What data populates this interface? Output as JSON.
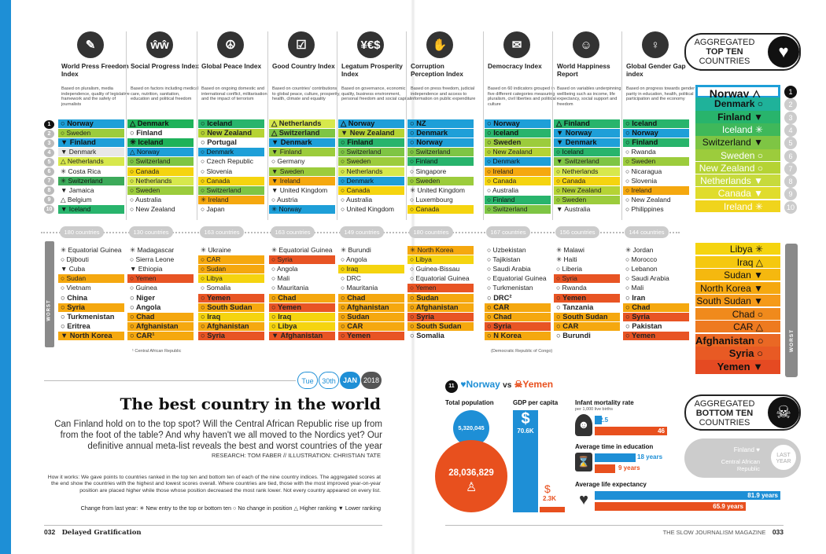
{
  "indices": [
    {
      "title": "World Press Freedom Index",
      "desc": "Based on pluralism, media independence, quality of legislative framework and the safety of journalists",
      "icon": "✎",
      "icon_name": "pen-nib-icon",
      "count": "180 countries"
    },
    {
      "title": "Social Progress Index",
      "desc": "Based on factors including medical care, nutrition, sanitation, education and political freedom",
      "icon": "ŵŵ",
      "icon_name": "people-icon",
      "count": "130 countries"
    },
    {
      "title": "Global Peace Index",
      "desc": "Based on ongoing domestic and international conflict, militarisation and the impact of terrorism",
      "icon": "☮",
      "icon_name": "peace-icon",
      "count": "163 countries"
    },
    {
      "title": "Good Country Index",
      "desc": "Based on countries' contributions to global peace, culture, prosperity, health, climate and equality",
      "icon": "☑",
      "icon_name": "checkbox-icon",
      "count": "163 countries"
    },
    {
      "title": "Legatum Prosperity Index",
      "desc": "Based on governance, economic quality, business environment, personal freedom and social capital",
      "icon": "¥€$",
      "icon_name": "currency-icon",
      "count": "149 countries"
    },
    {
      "title": "Corruption Perception Index",
      "desc": "Based on press freedom, judicial independence and access to information on public expenditure",
      "icon": "✋",
      "icon_name": "bribe-hand-icon",
      "count": "180 countries"
    },
    {
      "title": "Democracy Index",
      "desc": "Based on 60 indicators grouped in five different categories measuring pluralism, civil liberties and political culture",
      "icon": "✉",
      "icon_name": "ballot-icon",
      "count": "167 countries"
    },
    {
      "title": "World Happiness Report",
      "desc": "Based on variables underpinning wellbeing such as income, life expectancy, social support and freedom",
      "icon": "☺",
      "icon_name": "smiley-icon",
      "count": "156 countries"
    },
    {
      "title": "Global Gender Gap index",
      "desc": "Based on progress towards gender parity in education, health, political participation and the economy",
      "icon": "♀",
      "icon_name": "female-icon",
      "count": "144 countries"
    }
  ],
  "best_ranks": [
    "1",
    "2",
    "3",
    "4",
    "5",
    "6",
    "7",
    "8",
    "9",
    "10"
  ],
  "best_cols": [
    [
      [
        "○ Norway",
        "#1e9fd8",
        1
      ],
      [
        "○ Sweden",
        "#9ccc3c",
        0
      ],
      [
        "▼ Finland",
        "#1e9fd8",
        1
      ],
      [
        "▼ Denmark",
        "#e8e8e8",
        0
      ],
      [
        "△ Netherlands",
        "#d7e84c",
        0
      ],
      [
        "✳ Costa Rica",
        "",
        0
      ],
      [
        "✳ Switzerland",
        "#3caa5a",
        0
      ],
      [
        "▼ Jamaica",
        "",
        0
      ],
      [
        "△ Belgium",
        "",
        0
      ],
      [
        "▼ Iceland",
        "#28b46c",
        0
      ]
    ],
    [
      [
        "△ Denmark",
        "#1fb25a",
        1
      ],
      [
        "○ Finland",
        "",
        1
      ],
      [
        "✳ Iceland",
        "#1fb25a",
        1
      ],
      [
        "△ Norway",
        "#1e9fd8",
        0
      ],
      [
        "○ Switzerland",
        "#7ec544",
        0
      ],
      [
        "○ Canada",
        "#f5d40f",
        0
      ],
      [
        "○ Netherlands",
        "#d7e84c",
        0
      ],
      [
        "○ Sweden",
        "#9ccc3c",
        0
      ],
      [
        "○ Australia",
        "",
        0
      ],
      [
        "○ New Zealand",
        "",
        0
      ]
    ],
    [
      [
        "○ Iceland",
        "#28b46c",
        1
      ],
      [
        "○ New Zealand",
        "#b5d334",
        1
      ],
      [
        "○ Portugal",
        "",
        1
      ],
      [
        "○ Denmark",
        "#1e9fd8",
        0
      ],
      [
        "○ Czech Republic",
        "",
        0
      ],
      [
        "○ Slovenia",
        "",
        0
      ],
      [
        "○ Canada",
        "#f5d40f",
        0
      ],
      [
        "○ Switzerland",
        "#7ec544",
        0
      ],
      [
        "✳ Ireland",
        "#f5a80f",
        0
      ],
      [
        "○ Japan",
        "",
        0
      ]
    ],
    [
      [
        "△ Netherlands",
        "#d7e84c",
        1
      ],
      [
        "△ Switzerland",
        "#7ec544",
        1
      ],
      [
        "▼ Denmark",
        "#1e9fd8",
        1
      ],
      [
        "▼ Finland",
        "#9ccc3c",
        0
      ],
      [
        "○ Germany",
        "",
        0
      ],
      [
        "▼ Sweden",
        "#9ccc3c",
        0
      ],
      [
        "▼ Ireland",
        "#f5a80f",
        0
      ],
      [
        "▼ United Kingdom",
        "",
        0
      ],
      [
        "○ Austria",
        "",
        0
      ],
      [
        "✳ Norway",
        "#1e9fd8",
        0
      ]
    ],
    [
      [
        "△ Norway",
        "#1e9fd8",
        1
      ],
      [
        "▼ New Zealand",
        "#b5d334",
        1
      ],
      [
        "○ Finland",
        "#28b46c",
        1
      ],
      [
        "○ Switzerland",
        "#7ec544",
        0
      ],
      [
        "○ Sweden",
        "#9ccc3c",
        0
      ],
      [
        "○ Netherlands",
        "#d7e84c",
        0
      ],
      [
        "○ Denmark",
        "#1e9fd8",
        0
      ],
      [
        "○ Canada",
        "#f5d40f",
        0
      ],
      [
        "○ Australia",
        "",
        0
      ],
      [
        "○ United Kingdom",
        "",
        0
      ]
    ],
    [
      [
        "○ NZ",
        "#1e9fd8",
        1
      ],
      [
        "○ Denmark",
        "#1e9fd8",
        1
      ],
      [
        "○ Norway",
        "#1e9fd8",
        1
      ],
      [
        "○ Switzerland",
        "#7ec544",
        0
      ],
      [
        "○ Finland",
        "#28b46c",
        0
      ],
      [
        "○ Singapore",
        "",
        0
      ],
      [
        "○ Sweden",
        "#9ccc3c",
        0
      ],
      [
        "✳ United Kingdom",
        "",
        0
      ],
      [
        "○ Luxembourg",
        "",
        0
      ],
      [
        "○ Canada",
        "#f5d40f",
        0
      ]
    ],
    [
      [
        "○ Norway",
        "#1e9fd8",
        1
      ],
      [
        "○ Iceland",
        "#28b46c",
        1
      ],
      [
        "○ Sweden",
        "#9ccc3c",
        1
      ],
      [
        "○ New Zealand",
        "#b5d334",
        0
      ],
      [
        "○ Denmark",
        "#1e9fd8",
        0
      ],
      [
        "○ Ireland",
        "#f5a80f",
        0
      ],
      [
        "○ Canada",
        "#f5d40f",
        0
      ],
      [
        "○ Australia",
        "",
        0
      ],
      [
        "○ Finland",
        "#28b46c",
        0
      ],
      [
        "○ Switzerland",
        "#7ec544",
        0
      ]
    ],
    [
      [
        "△ Finland",
        "#28b46c",
        1
      ],
      [
        "▼ Norway",
        "#1e9fd8",
        1
      ],
      [
        "▼ Denmark",
        "#1e9fd8",
        1
      ],
      [
        "○ Iceland",
        "#28b46c",
        0
      ],
      [
        "▼ Switzerland",
        "#7ec544",
        0
      ],
      [
        "○ Netherlands",
        "#d7e84c",
        0
      ],
      [
        "○ Canada",
        "#f5d40f",
        0
      ],
      [
        "○ New Zealand",
        "#b5d334",
        0
      ],
      [
        "○ Sweden",
        "#9ccc3c",
        0
      ],
      [
        "▼ Australia",
        "",
        0
      ]
    ],
    [
      [
        "○ Iceland",
        "#28b46c",
        1
      ],
      [
        "○ Norway",
        "#1e9fd8",
        1
      ],
      [
        "○ Finland",
        "#28b46c",
        1
      ],
      [
        "○ Rwanda",
        "",
        0
      ],
      [
        "○ Sweden",
        "#9ccc3c",
        0
      ],
      [
        "○ Nicaragua",
        "",
        0
      ],
      [
        "○ Slovenia",
        "",
        0
      ],
      [
        "○ Ireland",
        "#f5a80f",
        0
      ],
      [
        "○ New Zealand",
        "",
        0
      ],
      [
        "○ Philippines",
        "",
        0
      ]
    ]
  ],
  "worst_cols": [
    [
      [
        "✳ Equatorial Guinea",
        ""
      ],
      [
        "○ Djibouti",
        ""
      ],
      [
        "▼ Cuba",
        ""
      ],
      [
        "○ Sudan",
        "#f5a80f"
      ],
      [
        "○ Vietnam",
        ""
      ],
      [
        "○ China",
        ""
      ],
      [
        "○ Syria",
        "#f5a80f"
      ],
      [
        "○ Turkmenistan",
        ""
      ],
      [
        "○ Eritrea",
        ""
      ],
      [
        "▼ North Korea",
        "#f5a80f"
      ]
    ],
    [
      [
        "✳ Madagascar",
        ""
      ],
      [
        "○ Sierra Leone",
        ""
      ],
      [
        "▼ Ethiopia",
        ""
      ],
      [
        "○ Yemen",
        "#e85424"
      ],
      [
        "○ Guinea",
        ""
      ],
      [
        "○ Niger",
        ""
      ],
      [
        "○ Angola",
        ""
      ],
      [
        "○ Chad",
        "#f5a80f"
      ],
      [
        "○ Afghanistan",
        "#f5a80f"
      ],
      [
        "○ CAR¹",
        "#f5a80f"
      ]
    ],
    [
      [
        "✳ Ukraine",
        ""
      ],
      [
        "○ CAR",
        "#f5a80f"
      ],
      [
        "○ Sudan",
        "#f5a80f"
      ],
      [
        "○ Libya",
        "#f5d40f"
      ],
      [
        "○ Somalia",
        ""
      ],
      [
        "○ Yemen",
        "#e85424"
      ],
      [
        "○ South Sudan",
        "#f5a80f"
      ],
      [
        "○ Iraq",
        "#f5d40f"
      ],
      [
        "○ Afghanistan",
        "#f5a80f"
      ],
      [
        "○ Syria",
        "#e85424"
      ]
    ],
    [
      [
        "✳ Equatorial Guinea",
        ""
      ],
      [
        "○ Syria",
        "#e85424"
      ],
      [
        "○ Angola",
        ""
      ],
      [
        "○ Mali",
        ""
      ],
      [
        "○ Mauritania",
        ""
      ],
      [
        "○ Chad",
        "#f5a80f"
      ],
      [
        "○ Yemen",
        "#e85424"
      ],
      [
        "○ Iraq",
        "#f5d40f"
      ],
      [
        "○ Libya",
        "#f5d40f"
      ],
      [
        "▼ Afghanistan",
        "#e85424"
      ]
    ],
    [
      [
        "✳ Burundi",
        ""
      ],
      [
        "○ Angola",
        ""
      ],
      [
        "○ Iraq",
        "#f5d40f"
      ],
      [
        "○ DRC",
        ""
      ],
      [
        "○ Mauritania",
        ""
      ],
      [
        "○ Chad",
        "#f5a80f"
      ],
      [
        "○ Afghanistan",
        "#f5a80f"
      ],
      [
        "○ Sudan",
        "#f5a80f"
      ],
      [
        "○ CAR",
        "#f5a80f"
      ],
      [
        "○ Yemen",
        "#e85424"
      ]
    ],
    [
      [
        "✳ North Korea",
        "#f5a80f"
      ],
      [
        "○ Libya",
        "#f5d40f"
      ],
      [
        "○ Guinea-Bissau",
        ""
      ],
      [
        "○ Equatorial Guinea",
        ""
      ],
      [
        "○ Yemen",
        "#e85424"
      ],
      [
        "○ Sudan",
        "#f5a80f"
      ],
      [
        "○ Afghanistan",
        "#f5a80f"
      ],
      [
        "○ Syria",
        "#e85424"
      ],
      [
        "○ South Sudan",
        "#f5a80f"
      ],
      [
        "○ Somalia",
        ""
      ]
    ],
    [
      [
        "○ Uzbekistan",
        ""
      ],
      [
        "○ Tajikistan",
        ""
      ],
      [
        "○ Saudi Arabia",
        ""
      ],
      [
        "○ Equatorial Guinea",
        ""
      ],
      [
        "○ Turkmenistan",
        ""
      ],
      [
        "○ DRC²",
        ""
      ],
      [
        "○ CAR",
        "#f5a80f"
      ],
      [
        "○ Chad",
        "#f5a80f"
      ],
      [
        "○ Syria",
        "#e85424"
      ],
      [
        "○ N Korea",
        "#f5a80f"
      ]
    ],
    [
      [
        "✳ Malawi",
        ""
      ],
      [
        "✳ Haiti",
        ""
      ],
      [
        "○ Liberia",
        ""
      ],
      [
        "○ Syria",
        "#e85424"
      ],
      [
        "○ Rwanda",
        ""
      ],
      [
        "○ Yemen",
        "#e85424"
      ],
      [
        "○ Tanzania",
        ""
      ],
      [
        "○ South Sudan",
        "#f5a80f"
      ],
      [
        "○ CAR",
        "#f5a80f"
      ],
      [
        "○ Burundi",
        ""
      ]
    ],
    [
      [
        "✳ Jordan",
        ""
      ],
      [
        "○ Morocco",
        ""
      ],
      [
        "○ Lebanon",
        ""
      ],
      [
        "○ Saudi Arabia",
        ""
      ],
      [
        "○ Mali",
        ""
      ],
      [
        "○ Iran",
        ""
      ],
      [
        "○ Chad",
        "#f5a80f"
      ],
      [
        "○ Syria",
        "#e85424"
      ],
      [
        "○ Pakistan",
        ""
      ],
      [
        "○ Yemen",
        "#e85424"
      ]
    ]
  ],
  "footnotes": {
    "car": "¹ Central African Republic",
    "drc": "(Democratic Republic of Congo)"
  },
  "agg_top": {
    "l1": "AGGREGATED",
    "l2": "TOP TEN",
    "l3": "COUNTRIES"
  },
  "agg_bottom": {
    "l1": "AGGREGATED",
    "l2": "BOTTOM TEN",
    "l3": "COUNTRIES"
  },
  "top_ten": [
    {
      "name": "Norway △",
      "color": "#1e9fd8",
      "dark": true
    },
    {
      "name": "Denmark ○",
      "color": "#1fb29a",
      "dark": true
    },
    {
      "name": "Finland ▼",
      "color": "#28b46c",
      "dark": true
    },
    {
      "name": "Iceland ✳",
      "color": "#3fb85a",
      "dark": false
    },
    {
      "name": "Switzerland ▼",
      "color": "#7ec544",
      "dark": true
    },
    {
      "name": "Sweden ○",
      "color": "#9ccc3c",
      "dark": false
    },
    {
      "name": "New Zealand ○",
      "color": "#b5d334",
      "dark": false
    },
    {
      "name": "Netherlands ▼",
      "color": "#c7da3c",
      "dark": false
    },
    {
      "name": "Canada ▼",
      "color": "#e0dc2c",
      "dark": false
    },
    {
      "name": "Ireland ✳",
      "color": "#f0d41c",
      "dark": false
    }
  ],
  "bottom_ten": [
    {
      "name": "Libya ✳",
      "color": "#f5d40f",
      "dark": true
    },
    {
      "name": "Iraq △",
      "color": "#f5c80f",
      "dark": true
    },
    {
      "name": "Sudan ▼",
      "color": "#f5b80f",
      "dark": true
    },
    {
      "name": "North Korea ▼",
      "color": "#f5a80f",
      "dark": true
    },
    {
      "name": "South Sudan ▼",
      "color": "#f59a18",
      "dark": true
    },
    {
      "name": "Chad ○",
      "color": "#f08a1c",
      "dark": true
    },
    {
      "name": "CAR △",
      "color": "#ee7a20",
      "dark": true
    },
    {
      "name": "Afghanistan ○",
      "color": "#ea6824",
      "dark": true
    },
    {
      "name": "Syria ○",
      "color": "#e85a24",
      "dark": true
    },
    {
      "name": "Yemen ▼",
      "color": "#e54a22",
      "dark": true
    }
  ],
  "last_year": {
    "finland": "Finland",
    "car": "Central African Republic",
    "badge": "LAST YEAR"
  },
  "date": {
    "day": "Tue",
    "num": "30th",
    "month": "JAN",
    "year": "2018"
  },
  "title": "The best country in the world",
  "intro": "Can Finland hold on to the top spot? Will the Central African Republic rise up from from the foot of the table? And why haven't we all moved to the Nordics yet? Our definitive annual meta-list reveals the best and worst countries of the year",
  "credit": "RESEARCH: TOM FABER // ILLUSTRATION: CHRISTIAN TATE",
  "how": "How it works: We gave points to countries ranked in the top ten and bottom ten of each of the nine country indices. The aggregated scores at the end show the countries with the highest and lowest scores overall. Where countries are tied, those with the most improved year-on-year position are placed higher while those whose position decreased the most rank lower. Not every country appeared on every list.",
  "legend": "Change from last year: ✳ New entry to the top or bottom ten ○ No change in position △ Higher ranking ▼ Lower ranking",
  "footer_left": {
    "page": "032",
    "pub": "Delayed Gratification"
  },
  "footer_right": {
    "mag": "THE SLOW JOURNALISM MAGAZINE",
    "page": "033"
  },
  "vs": {
    "num": "11",
    "a": "Norway",
    "vs": "vs",
    "b": "Yemen"
  },
  "stats": {
    "pop_label": "Total population",
    "pop_a": "5,320,045",
    "pop_b": "28,036,829",
    "gdp_label": "GDP per capita",
    "gdp_a": "70.6K",
    "gdp_b": "2.3K",
    "im_label": "Infant mortality rate",
    "im_sub": "per 1,000 live births",
    "im_a": "2.5",
    "im_b": "46",
    "edu_label": "Average time in education",
    "edu_a": "18 years",
    "edu_b": "9 years",
    "life_label": "Average life expectancy",
    "life_a": "81.9 years",
    "life_b": "65.9 years"
  },
  "colors": {
    "norway": "#1e8fd6",
    "yemen": "#e8501e"
  }
}
